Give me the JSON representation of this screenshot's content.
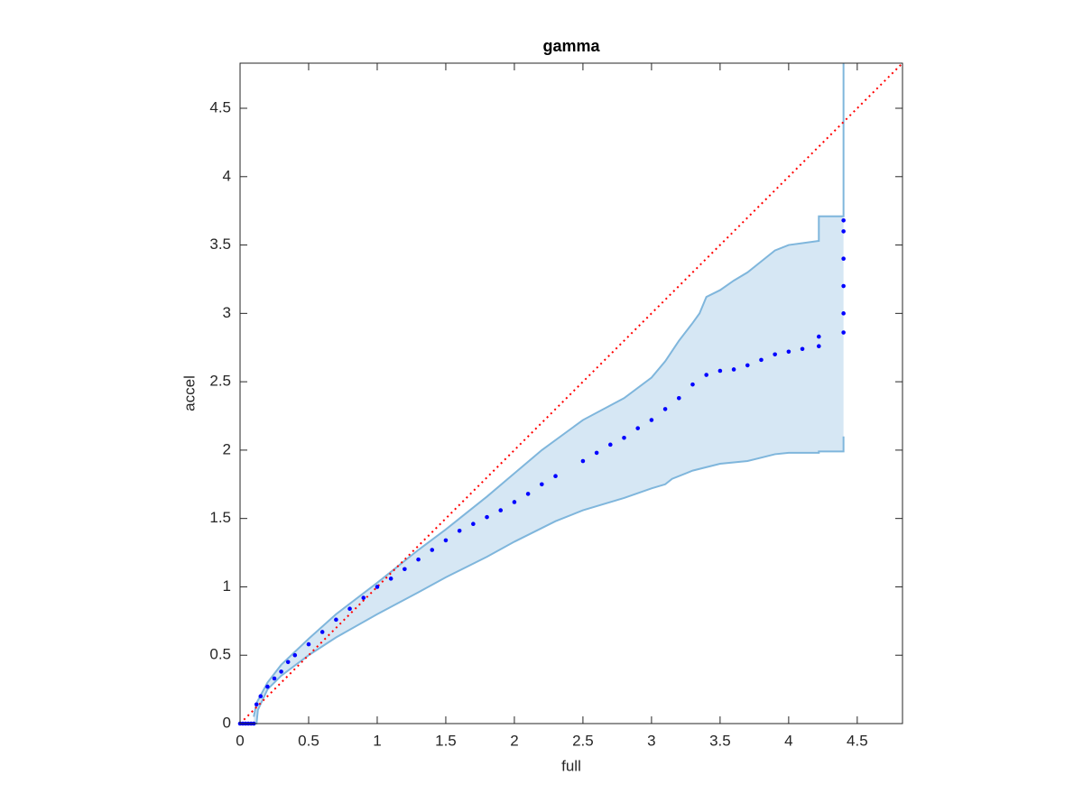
{
  "chart_data": {
    "type": "scatter",
    "title": "gamma",
    "x_label": "full",
    "y_label": "accel",
    "xlim": [
      0,
      4.83
    ],
    "ylim": [
      0,
      4.83
    ],
    "xticks": [
      0,
      0.5,
      1,
      1.5,
      2,
      2.5,
      3,
      3.5,
      4,
      4.5
    ],
    "yticks": [
      0,
      0.5,
      1,
      1.5,
      2,
      2.5,
      3,
      3.5,
      4,
      4.5
    ],
    "grid": false,
    "series": [
      {
        "color": "#0000ff",
        "x": [
          0,
          0.02,
          0.04,
          0.06,
          0.08,
          0.1,
          0.12,
          0.15,
          0.2,
          0.25,
          0.3,
          0.35,
          0.4,
          0.5,
          0.6,
          0.7,
          0.8,
          0.9,
          1.0,
          1.1,
          1.2,
          1.3,
          1.4,
          1.5,
          1.6,
          1.7,
          1.8,
          1.9,
          2.0,
          2.1,
          2.2,
          2.3,
          2.5,
          2.6,
          2.7,
          2.8,
          2.9,
          3.0,
          3.1,
          3.2,
          3.3,
          3.4,
          3.5,
          3.6,
          3.7,
          3.8,
          3.9,
          4.0,
          4.1,
          4.22,
          4.22,
          4.4,
          4.4,
          4.4,
          4.4,
          4.4,
          4.4
        ],
        "values": [
          0,
          0,
          0,
          0,
          0,
          0,
          0.14,
          0.2,
          0.27,
          0.33,
          0.38,
          0.45,
          0.5,
          0.58,
          0.67,
          0.76,
          0.84,
          0.92,
          1.0,
          1.06,
          1.13,
          1.2,
          1.27,
          1.34,
          1.41,
          1.46,
          1.51,
          1.56,
          1.62,
          1.68,
          1.75,
          1.81,
          1.92,
          1.98,
          2.04,
          2.09,
          2.16,
          2.22,
          2.3,
          2.38,
          2.48,
          2.55,
          2.58,
          2.59,
          2.62,
          2.66,
          2.7,
          2.72,
          2.74,
          2.76,
          2.83,
          2.86,
          3.0,
          3.2,
          3.4,
          3.6,
          3.68
        ]
      }
    ],
    "band": {
      "color": "#7fb6dc",
      "fill": "#d6e7f4",
      "upper": {
        "x": [
          0.1,
          0.12,
          0.2,
          0.3,
          0.5,
          0.7,
          1.0,
          1.3,
          1.5,
          1.8,
          2.0,
          2.2,
          2.5,
          2.8,
          3.0,
          3.1,
          3.2,
          3.3,
          3.35,
          3.4,
          3.5,
          3.6,
          3.7,
          3.8,
          3.9,
          4.0,
          4.22,
          4.22,
          4.4,
          4.4
        ],
        "values": [
          0.05,
          0.15,
          0.3,
          0.43,
          0.62,
          0.8,
          1.03,
          1.27,
          1.42,
          1.66,
          1.83,
          2.0,
          2.22,
          2.38,
          2.53,
          2.65,
          2.8,
          2.93,
          3.0,
          3.12,
          3.17,
          3.24,
          3.3,
          3.38,
          3.46,
          3.5,
          3.53,
          3.71,
          3.71,
          4.83
        ]
      },
      "lower": {
        "x": [
          0.1,
          0.12,
          0.13,
          0.2,
          0.3,
          0.5,
          0.7,
          1.0,
          1.3,
          1.5,
          1.8,
          2.0,
          2.3,
          2.5,
          2.8,
          3.0,
          3.1,
          3.15,
          3.3,
          3.5,
          3.7,
          3.9,
          4.0,
          4.22,
          4.22,
          4.4,
          4.4
        ],
        "values": [
          0,
          0,
          0.1,
          0.25,
          0.35,
          0.5,
          0.63,
          0.8,
          0.96,
          1.07,
          1.22,
          1.33,
          1.48,
          1.56,
          1.65,
          1.72,
          1.75,
          1.79,
          1.85,
          1.9,
          1.92,
          1.97,
          1.98,
          1.98,
          1.99,
          1.99,
          2.1
        ]
      }
    },
    "reference_line": {
      "color": "#ff0000",
      "x": [
        0,
        4.83
      ],
      "values": [
        0,
        4.83
      ]
    }
  }
}
